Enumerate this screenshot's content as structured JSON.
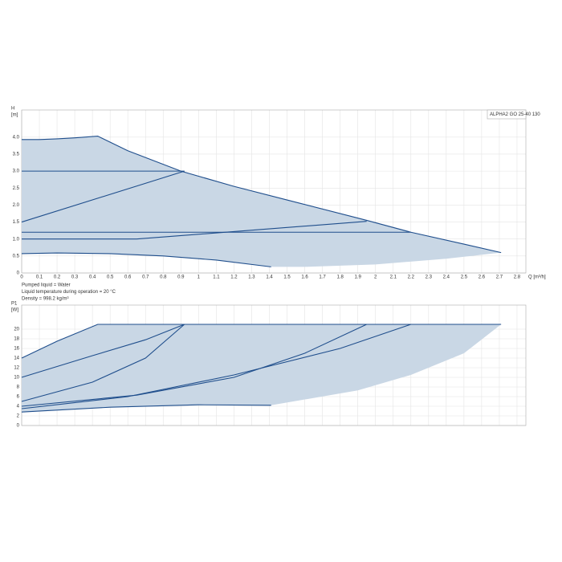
{
  "chart_data": [
    {
      "type": "line",
      "title": "ALPHA2 GO 25-40 130",
      "ylabel": [
        "H",
        "[m]"
      ],
      "xlabel": "Q [m³/h]",
      "xlim": [
        0,
        2.85
      ],
      "ylim": [
        0,
        4.8
      ],
      "xticks": [
        0,
        0.1,
        0.2,
        0.3,
        0.4,
        0.5,
        0.6,
        0.7,
        0.8,
        0.9,
        1,
        1.1,
        1.2,
        1.3,
        1.4,
        1.5,
        1.6,
        1.7,
        1.8,
        1.9,
        2,
        2.1,
        2.2,
        2.3,
        2.4,
        2.5,
        2.6,
        2.7,
        2.8
      ],
      "yticks": [
        0,
        0.5,
        {
          "value": 1,
          "label": "1.0"
        },
        1.5,
        {
          "value": 2,
          "label": "2.0"
        },
        2.5,
        {
          "value": 3,
          "label": "3.0"
        },
        3.5,
        {
          "value": 4,
          "label": "4.0"
        }
      ],
      "grid": true,
      "band": {
        "color": "#c9d7e5",
        "x": [
          0,
          0.1,
          0.2,
          0.3,
          0.43,
          0.6,
          0.9,
          1.2,
          1.5,
          1.95,
          2.2,
          2.5,
          2.71,
          2.4,
          2.0,
          1.6,
          1.41,
          1.1,
          0.8,
          0.5,
          0.2,
          0
        ],
        "values": [
          3.93,
          3.93,
          3.95,
          3.98,
          4.03,
          3.6,
          3.0,
          2.55,
          2.15,
          1.55,
          1.2,
          0.85,
          0.6,
          0.42,
          0.25,
          0.18,
          0.18,
          0.38,
          0.5,
          0.57,
          0.59,
          0.57
        ]
      },
      "series": [
        {
          "color": "#1f4e8c",
          "x": [
            0,
            0.1,
            0.2,
            0.3,
            0.43,
            0.6,
            0.9,
            1.2,
            1.5,
            1.95,
            2.2,
            2.5,
            2.71
          ],
          "values": [
            3.93,
            3.93,
            3.95,
            3.98,
            4.03,
            3.6,
            3.0,
            2.55,
            2.15,
            1.55,
            1.2,
            0.85,
            0.6
          ]
        },
        {
          "color": "#1f4e8c",
          "x": [
            0,
            0.92
          ],
          "values": [
            3.0,
            3.0
          ]
        },
        {
          "color": "#1f4e8c",
          "x": [
            0,
            0.92
          ],
          "values": [
            1.5,
            3.0
          ]
        },
        {
          "color": "#1f4e8c",
          "x": [
            0,
            2.2
          ],
          "values": [
            1.2,
            1.2
          ]
        },
        {
          "color": "#1f4e8c",
          "x": [
            0,
            0.65,
            1.95
          ],
          "values": [
            1.0,
            1.0,
            1.52
          ]
        },
        {
          "color": "#1f4e8c",
          "x": [
            0,
            0.2,
            0.5,
            0.8,
            1.1,
            1.41
          ],
          "values": [
            0.57,
            0.59,
            0.57,
            0.5,
            0.38,
            0.18
          ]
        }
      ],
      "notes": [
        "Pumped liquid = Water",
        "Liquid temperature during operation = 20 °C",
        "Density = 998.2 kg/m³"
      ]
    },
    {
      "type": "line",
      "ylabel": [
        "P1",
        "[W]"
      ],
      "xlim": [
        0,
        2.85
      ],
      "ylim": [
        0,
        25
      ],
      "yticks": [
        0,
        2,
        4,
        6,
        8,
        10,
        12,
        14,
        16,
        18,
        20
      ],
      "xgrid": [
        0,
        0.1,
        0.2,
        0.3,
        0.4,
        0.5,
        0.6,
        0.7,
        0.8,
        0.9,
        1,
        1.1,
        1.2,
        1.3,
        1.4,
        1.5,
        1.6,
        1.7,
        1.8,
        1.9,
        2,
        2.1,
        2.2,
        2.3,
        2.4,
        2.5,
        2.6,
        2.7,
        2.8
      ],
      "grid": true,
      "band": {
        "color": "#c9d7e5",
        "x": [
          0,
          0.2,
          0.43,
          2.71,
          2.5,
          2.2,
          1.9,
          1.41,
          1.0,
          0.5,
          0
        ],
        "values": [
          14,
          17.5,
          21,
          21,
          15,
          10.5,
          7.3,
          4.2,
          4.3,
          3.8,
          2.8
        ]
      },
      "series": [
        {
          "color": "#1f4e8c",
          "x": [
            0,
            0.2,
            0.43,
            2.71
          ],
          "values": [
            14,
            17.5,
            21,
            21
          ]
        },
        {
          "color": "#1f4e8c",
          "x": [
            0,
            0.4,
            0.7,
            0.92
          ],
          "values": [
            10,
            14.5,
            17.8,
            21
          ]
        },
        {
          "color": "#1f4e8c",
          "x": [
            0,
            0.4,
            0.7,
            0.92
          ],
          "values": [
            5,
            9,
            14,
            21
          ]
        },
        {
          "color": "#1f4e8c",
          "x": [
            0,
            0.65,
            1.2,
            1.6,
            1.95
          ],
          "values": [
            4,
            6.3,
            10,
            15,
            21
          ]
        },
        {
          "color": "#1f4e8c",
          "x": [
            0,
            0.6,
            1.2,
            1.8,
            2.2
          ],
          "values": [
            3.5,
            6,
            10.5,
            16,
            21
          ]
        },
        {
          "color": "#1f4e8c",
          "x": [
            0,
            0.5,
            1.0,
            1.41
          ],
          "values": [
            2.8,
            3.8,
            4.3,
            4.2
          ]
        }
      ]
    }
  ]
}
